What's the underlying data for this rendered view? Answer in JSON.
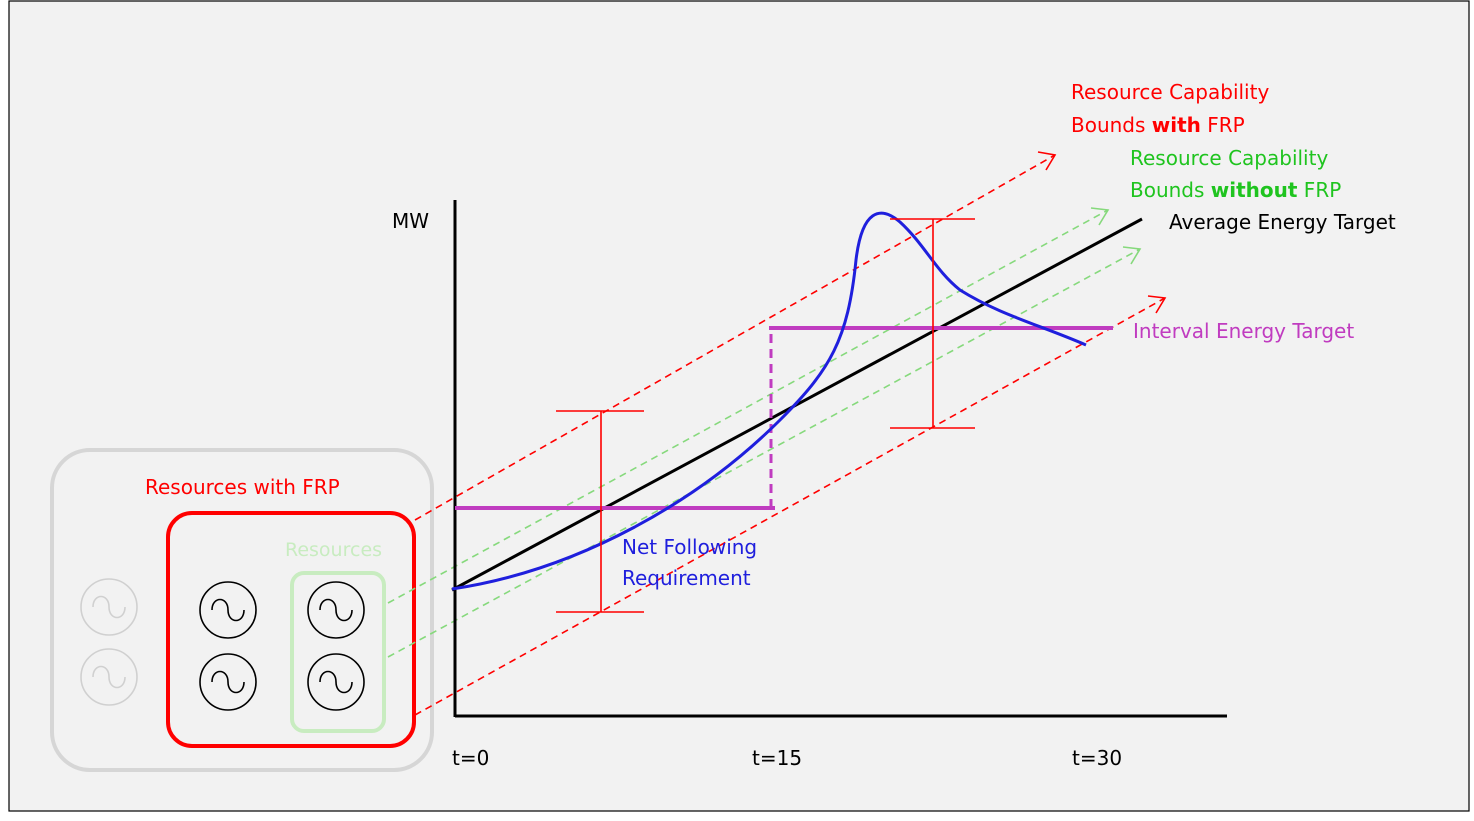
{
  "labels": {
    "y_axis": "MW",
    "ticks": [
      "t=0",
      "t=15",
      "t=30"
    ],
    "cap_with_line1": "Resource Capability",
    "cap_with_line2_pre": "Bounds ",
    "cap_with_line2_bold": "with",
    "cap_with_line2_post": " FRP",
    "cap_without_line1": "Resource Capability",
    "cap_without_line2_pre": "Bounds ",
    "cap_without_line2_bold": "without",
    "cap_without_line2_post": " FRP",
    "average_energy_target": "Average Energy Target",
    "interval_energy_target": "Interval Energy Target",
    "net_following_line1": "Net Following",
    "net_following_line2": "Requirement",
    "resources_with_frp": "Resources with FRP",
    "resources": "Resources"
  },
  "colors": {
    "background": "#f2f2f2",
    "frame": "#000000",
    "axis": "#000000",
    "red": "#ff0000",
    "green": "#1fc41f",
    "light_green": "#86d97c",
    "green_box": "#c8ecc0",
    "blue": "#1f1fdd",
    "magenta": "#c03cc0",
    "black": "#000000",
    "grey_box": "#d6d6d6",
    "grey_generator": "#d0d0d0"
  },
  "icons": {
    "generator": "ac-generator-icon"
  }
}
